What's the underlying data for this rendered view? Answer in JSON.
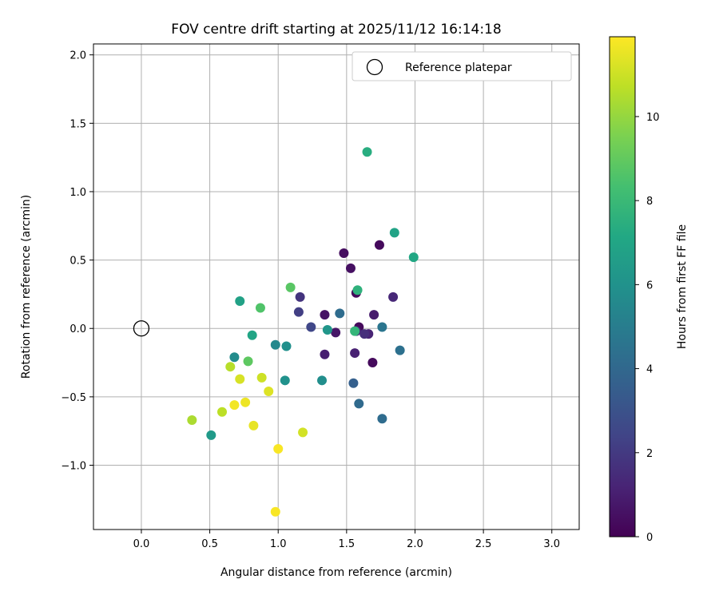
{
  "chart_data": {
    "type": "scatter",
    "title": "FOV centre drift starting at 2025/11/12 16:14:18",
    "xlabel": "Angular distance from reference (arcmin)",
    "ylabel": "Rotation from reference (arcmin)",
    "xlim": [
      -0.35,
      3.2
    ],
    "ylim": [
      -1.47,
      2.08
    ],
    "xticks": [
      0.0,
      0.5,
      1.0,
      1.5,
      2.0,
      2.5,
      3.0
    ],
    "xtick_labels": [
      "0.0",
      "0.5",
      "1.0",
      "1.5",
      "2.0",
      "2.5",
      "3.0"
    ],
    "yticks": [
      -1.0,
      -0.5,
      0.0,
      0.5,
      1.0,
      1.5,
      2.0
    ],
    "ytick_labels": [
      "−1.0",
      "−0.5",
      "0.0",
      "0.5",
      "1.0",
      "1.5",
      "2.0"
    ],
    "grid": true,
    "legend": {
      "position": "top-right",
      "entries": [
        {
          "label": "Reference platepar",
          "marker": "open-circle"
        }
      ]
    },
    "reference_point": {
      "x": 0.0,
      "y": 0.0
    },
    "colorbar": {
      "label": "Hours from first FF file",
      "colormap": "viridis",
      "range": [
        0,
        11.9
      ],
      "ticks": [
        0,
        2,
        4,
        6,
        8,
        10
      ],
      "tick_labels": [
        "0",
        "2",
        "4",
        "6",
        "8",
        "10"
      ]
    },
    "points": [
      {
        "x": 1.48,
        "y": 0.55,
        "hours": 0.4
      },
      {
        "x": 1.53,
        "y": 0.44,
        "hours": 0.5
      },
      {
        "x": 1.74,
        "y": 0.61,
        "hours": 0.3
      },
      {
        "x": 1.57,
        "y": 0.26,
        "hours": 0.2
      },
      {
        "x": 1.59,
        "y": 0.01,
        "hours": 0.3
      },
      {
        "x": 1.66,
        "y": -0.04,
        "hours": 1.2
      },
      {
        "x": 1.34,
        "y": 0.1,
        "hours": 0.6
      },
      {
        "x": 1.42,
        "y": -0.03,
        "hours": 0.7
      },
      {
        "x": 1.34,
        "y": -0.19,
        "hours": 1.0
      },
      {
        "x": 1.56,
        "y": -0.18,
        "hours": 1.1
      },
      {
        "x": 1.69,
        "y": -0.25,
        "hours": 0.3
      },
      {
        "x": 1.7,
        "y": 0.1,
        "hours": 0.9
      },
      {
        "x": 1.84,
        "y": 0.23,
        "hours": 1.3
      },
      {
        "x": 1.57,
        "y": -0.02,
        "hours": 1.4
      },
      {
        "x": 1.63,
        "y": -0.04,
        "hours": 1.6
      },
      {
        "x": 1.16,
        "y": 0.23,
        "hours": 1.8
      },
      {
        "x": 1.15,
        "y": 0.12,
        "hours": 2.2
      },
      {
        "x": 1.24,
        "y": 0.01,
        "hours": 2.5
      },
      {
        "x": 1.45,
        "y": 0.11,
        "hours": 4.2
      },
      {
        "x": 1.76,
        "y": 0.01,
        "hours": 4.6
      },
      {
        "x": 1.89,
        "y": -0.16,
        "hours": 4.4
      },
      {
        "x": 1.55,
        "y": -0.4,
        "hours": 3.6
      },
      {
        "x": 1.59,
        "y": -0.55,
        "hours": 4.1
      },
      {
        "x": 1.76,
        "y": -0.66,
        "hours": 4.2
      },
      {
        "x": 1.36,
        "y": -0.01,
        "hours": 6.2
      },
      {
        "x": 1.32,
        "y": -0.38,
        "hours": 5.8
      },
      {
        "x": 0.98,
        "y": -0.12,
        "hours": 5.5
      },
      {
        "x": 1.06,
        "y": -0.13,
        "hours": 5.9
      },
      {
        "x": 1.05,
        "y": -0.38,
        "hours": 6.0
      },
      {
        "x": 0.68,
        "y": -0.21,
        "hours": 5.7
      },
      {
        "x": 0.51,
        "y": -0.78,
        "hours": 6.4
      },
      {
        "x": 0.72,
        "y": 0.2,
        "hours": 6.8
      },
      {
        "x": 0.81,
        "y": -0.05,
        "hours": 7.0
      },
      {
        "x": 1.65,
        "y": 1.29,
        "hours": 7.4
      },
      {
        "x": 1.85,
        "y": 0.7,
        "hours": 6.9
      },
      {
        "x": 1.99,
        "y": 0.52,
        "hours": 7.1
      },
      {
        "x": 1.58,
        "y": 0.28,
        "hours": 7.6
      },
      {
        "x": 1.56,
        "y": -0.02,
        "hours": 7.8
      },
      {
        "x": 1.09,
        "y": 0.3,
        "hours": 8.8
      },
      {
        "x": 0.87,
        "y": 0.15,
        "hours": 8.6
      },
      {
        "x": 0.78,
        "y": -0.24,
        "hours": 8.9
      },
      {
        "x": 0.65,
        "y": -0.28,
        "hours": 10.6
      },
      {
        "x": 0.72,
        "y": -0.37,
        "hours": 11.2
      },
      {
        "x": 0.88,
        "y": -0.36,
        "hours": 11.0
      },
      {
        "x": 0.93,
        "y": -0.46,
        "hours": 11.3
      },
      {
        "x": 0.59,
        "y": -0.61,
        "hours": 10.7
      },
      {
        "x": 0.37,
        "y": -0.67,
        "hours": 10.4
      },
      {
        "x": 0.68,
        "y": -0.56,
        "hours": 11.7
      },
      {
        "x": 0.76,
        "y": -0.54,
        "hours": 11.6
      },
      {
        "x": 0.82,
        "y": -0.71,
        "hours": 11.5
      },
      {
        "x": 1.18,
        "y": -0.76,
        "hours": 11.1
      },
      {
        "x": 1.0,
        "y": -0.88,
        "hours": 11.8
      },
      {
        "x": 0.98,
        "y": -1.34,
        "hours": 11.8
      }
    ]
  }
}
